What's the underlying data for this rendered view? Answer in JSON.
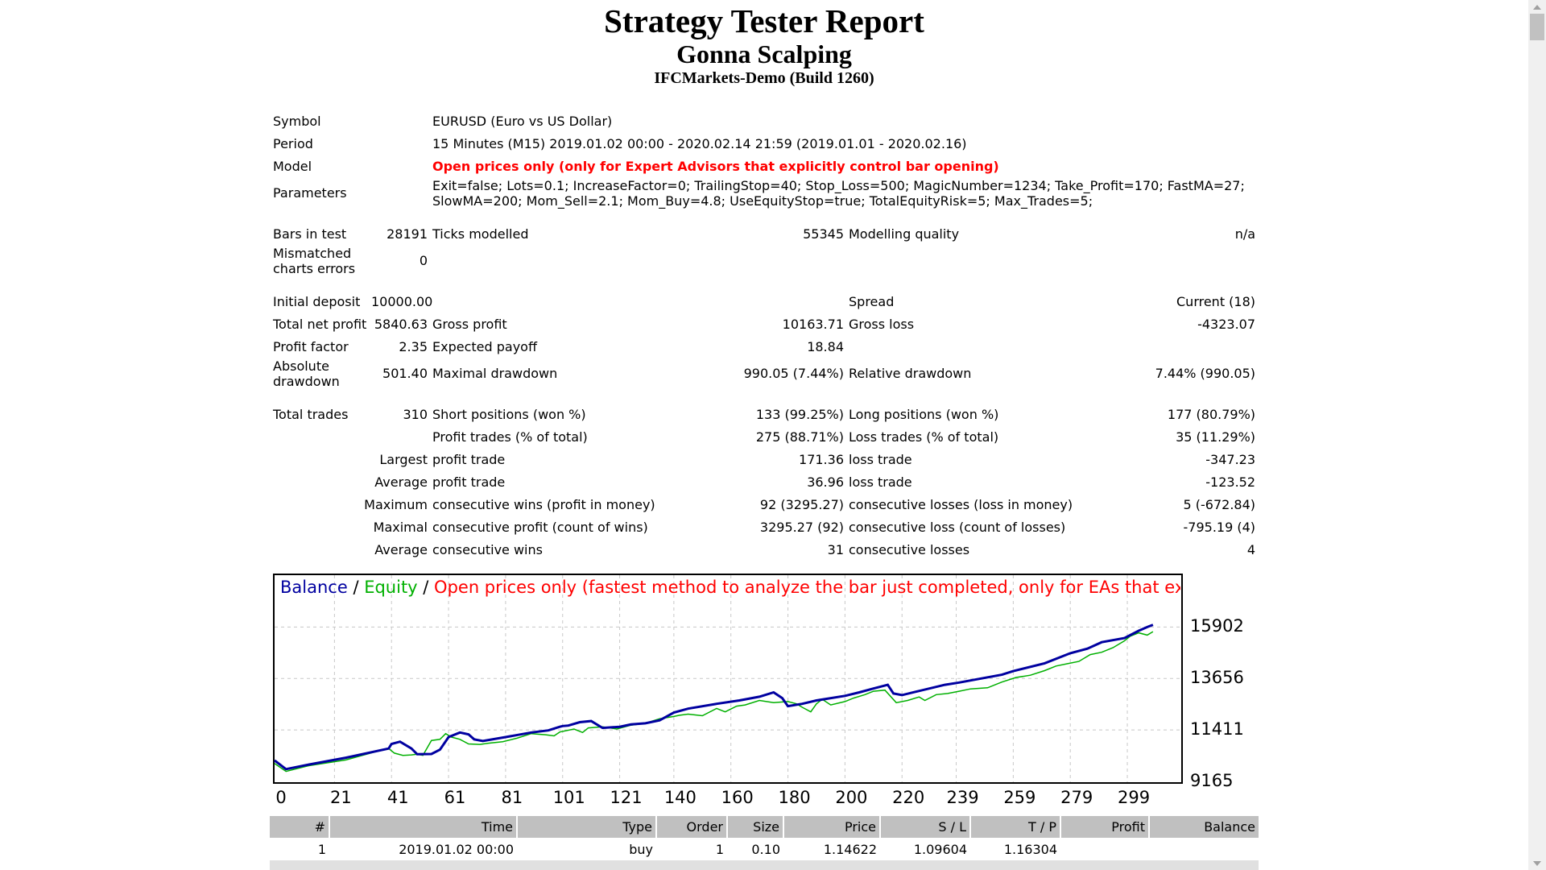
{
  "header": {
    "title": "Strategy Tester Report",
    "subtitle": "Gonna Scalping",
    "build": "IFCMarkets-Demo (Build 1260)"
  },
  "info": {
    "symbol_label": "Symbol",
    "symbol_value": "EURUSD (Euro vs US Dollar)",
    "period_label": "Period",
    "period_value": "15 Minutes (M15) 2019.01.02 00:00 - 2020.02.14 21:59 (2019.01.01 - 2020.02.16)",
    "model_label": "Model",
    "model_value": "Open prices only (only for Expert Advisors that explicitly control bar opening)",
    "parameters_label": "Parameters",
    "parameters_value": "Exit=false; Lots=0.1; IncreaseFactor=0; TrailingStop=40; Stop_Loss=500; MagicNumber=1234; Take_Profit=170; FastMA=27; SlowMA=200; Mom_Sell=2.1; Mom_Buy=4.8; UseEquityStop=true; TotalEquityRisk=5; Max_Trades=5;"
  },
  "stats": {
    "bars_label": "Bars in test",
    "bars_value": "28191",
    "ticks_label": "Ticks modelled",
    "ticks_value": "55345",
    "quality_label": "Modelling quality",
    "quality_value": "n/a",
    "mismatch_label": "Mismatched charts errors",
    "mismatch_value": "0",
    "deposit_label": "Initial deposit",
    "deposit_value": "10000.00",
    "spread_label": "Spread",
    "spread_value": "Current (18)",
    "net_label": "Total net profit",
    "net_value": "5840.63",
    "gross_profit_label": "Gross profit",
    "gross_profit_value": "10163.71",
    "gross_loss_label": "Gross loss",
    "gross_loss_value": "-4323.07",
    "pf_label": "Profit factor",
    "pf_value": "2.35",
    "payoff_label": "Expected payoff",
    "payoff_value": "18.84",
    "abs_dd_label": "Absolute drawdown",
    "abs_dd_value": "501.40",
    "max_dd_label": "Maximal drawdown",
    "max_dd_value": "990.05 (7.44%)",
    "rel_dd_label": "Relative drawdown",
    "rel_dd_value": "7.44% (990.05)",
    "trades_label": "Total trades",
    "trades_value": "310",
    "short_label": "Short positions (won %)",
    "short_value": "133 (99.25%)",
    "long_label": "Long positions (won %)",
    "long_value": "177 (80.79%)",
    "profit_trades_label": "Profit trades (% of total)",
    "profit_trades_value": "275 (88.71%)",
    "loss_trades_label": "Loss trades (% of total)",
    "loss_trades_value": "35 (11.29%)",
    "largest_label": "Largest",
    "largest_profit_label": "profit trade",
    "largest_profit_value": "171.36",
    "largest_loss_label": "loss trade",
    "largest_loss_value": "-347.23",
    "average_label": "Average",
    "average_profit_label": "profit trade",
    "average_profit_value": "36.96",
    "average_loss_label": "loss trade",
    "average_loss_value": "-123.52",
    "maximum_label": "Maximum",
    "max_cons_wins_label": "consecutive wins (profit in money)",
    "max_cons_wins_value": "92 (3295.27)",
    "max_cons_losses_label": "consecutive losses (loss in money)",
    "max_cons_losses_value": "5 (-672.84)",
    "maximal_label": "Maximal",
    "maximal_profit_label": "consecutive profit (count of wins)",
    "maximal_profit_value": "3295.27 (92)",
    "maximal_loss_label": "consecutive loss (count of losses)",
    "maximal_loss_value": "-795.19 (4)",
    "average2_label": "Average",
    "avg_cons_wins_label": "consecutive wins",
    "avg_cons_wins_value": "31",
    "avg_cons_losses_label": "consecutive losses",
    "avg_cons_losses_value": "4"
  },
  "chart_data": {
    "type": "line",
    "legend": {
      "balance": "Balance",
      "sep1": " / ",
      "equity": "Equity",
      "sep2": " / ",
      "mode": "Open prices only (fastest method to analyze the bar just completed, only for EAs that explicitly control b"
    },
    "y_ticks": [
      "15902",
      "13656",
      "11411",
      "9165"
    ],
    "x_ticks": [
      "0",
      "21",
      "41",
      "61",
      "81",
      "101",
      "121",
      "140",
      "160",
      "180",
      "200",
      "220",
      "239",
      "259",
      "279",
      "299"
    ],
    "xlim": [
      0,
      310
    ],
    "ylim": [
      9165,
      16900
    ],
    "grid": true,
    "colors": {
      "balance": "#0000a0",
      "equity": "#00b000",
      "mode": "#ff0000"
    },
    "series": [
      {
        "name": "Balance",
        "x": [
          0,
          4,
          12,
          25,
          40,
          41,
          44,
          48,
          50,
          55,
          58,
          61,
          65,
          68,
          70,
          73,
          81,
          90,
          96,
          100,
          101,
          103,
          107,
          111,
          115,
          121,
          125,
          130,
          135,
          140,
          145,
          155,
          163,
          170,
          175,
          178,
          180,
          185,
          190,
          200,
          205,
          210,
          215,
          217,
          220,
          225,
          235,
          240,
          255,
          259,
          270,
          279,
          285,
          290,
          298,
          303,
          306,
          308
        ],
        "y": [
          10080,
          9700,
          9900,
          10200,
          10600,
          10800,
          10900,
          10600,
          10350,
          10360,
          10550,
          11100,
          11300,
          11220,
          11000,
          10930,
          11100,
          11300,
          11390,
          11550,
          11580,
          11600,
          11750,
          11800,
          11500,
          11550,
          11650,
          11700,
          11830,
          12170,
          12340,
          12550,
          12700,
          12860,
          13050,
          12800,
          12450,
          12550,
          12700,
          12900,
          13050,
          13220,
          13380,
          13000,
          12930,
          13080,
          13380,
          13480,
          13820,
          13980,
          14320,
          14760,
          14960,
          15240,
          15420,
          15740,
          15900,
          16000
        ]
      },
      {
        "name": "Equity",
        "x": [
          0,
          4,
          12,
          25,
          38,
          40,
          42,
          45,
          48,
          50,
          52,
          55,
          58,
          60,
          62,
          65,
          68,
          72,
          75,
          80,
          85,
          90,
          95,
          98,
          100,
          105,
          108,
          110,
          115,
          120,
          125,
          130,
          135,
          140,
          142,
          145,
          150,
          155,
          158,
          162,
          165,
          170,
          175,
          180,
          183,
          185,
          188,
          190,
          192,
          195,
          200,
          203,
          207,
          210,
          214,
          218,
          222,
          226,
          228,
          232,
          236,
          240,
          244,
          250,
          255,
          260,
          265,
          270,
          274,
          278,
          282,
          286,
          290,
          294,
          298,
          300,
          303,
          306,
          308
        ],
        "y": [
          9950,
          9600,
          9850,
          10100,
          10550,
          10600,
          10400,
          10300,
          10320,
          10350,
          10300,
          10950,
          11000,
          11250,
          11100,
          11000,
          10800,
          10780,
          10830,
          10900,
          11050,
          11250,
          11200,
          11150,
          11320,
          11450,
          11300,
          11500,
          11550,
          11450,
          11620,
          11700,
          11900,
          12000,
          12050,
          12100,
          12030,
          12350,
          12200,
          12450,
          12500,
          12700,
          12600,
          12650,
          12550,
          12400,
          12200,
          12550,
          12750,
          12500,
          12650,
          12800,
          12950,
          13100,
          13150,
          12600,
          12700,
          12850,
          12700,
          12950,
          13000,
          13100,
          13200,
          13250,
          13500,
          13700,
          13800,
          14000,
          14200,
          14300,
          14400,
          14700,
          14800,
          15000,
          15300,
          15500,
          15650,
          15550,
          15700
        ]
      }
    ]
  },
  "trades": {
    "headers": [
      "#",
      "Time",
      "Type",
      "Order",
      "Size",
      "Price",
      "S / L",
      "T / P",
      "Profit",
      "Balance"
    ],
    "rows": [
      [
        "1",
        "2019.01.02 00:00",
        "buy",
        "1",
        "0.10",
        "1.14622",
        "1.09604",
        "1.16304",
        "",
        ""
      ]
    ]
  }
}
